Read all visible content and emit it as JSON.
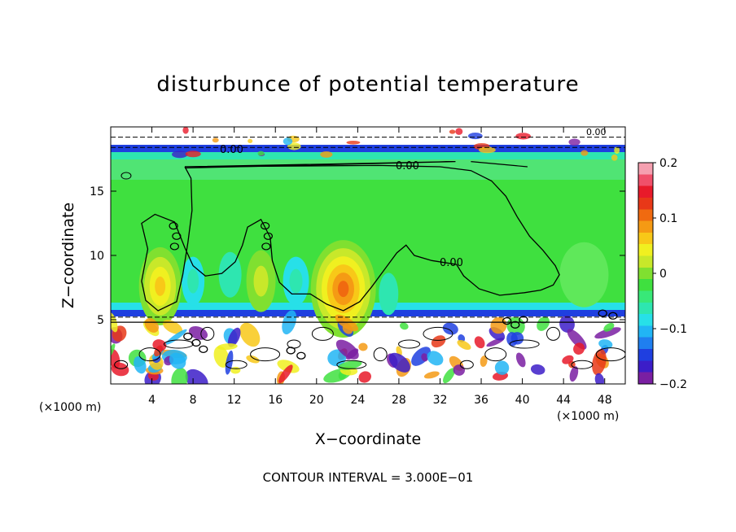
{
  "chart_data": {
    "type": "heatmap",
    "title": "disturbunce of potential temperature",
    "xlabel": "X−coordinate",
    "ylabel": "Z−coordinate",
    "x_unit_left": "(×1000 m)",
    "x_unit_right": "(×1000 m)",
    "xlim": [
      0,
      50
    ],
    "ylim": [
      0,
      20
    ],
    "x_ticks": [
      4,
      8,
      12,
      16,
      20,
      24,
      28,
      32,
      36,
      40,
      44,
      48
    ],
    "y_ticks": [
      5,
      10,
      15
    ],
    "colorbar": {
      "min": -0.2,
      "max": 0.2,
      "tick_values": [
        0.2,
        0.1,
        0,
        -0.1,
        -0.2
      ],
      "tick_labels": [
        "0.2",
        "0.1",
        "0",
        "−0.1",
        "−0.2"
      ],
      "colors": [
        "#7a1fa2",
        "#3c1dc8",
        "#1f3fe0",
        "#1f7ff0",
        "#21b5f5",
        "#27e0e8",
        "#2ee6b0",
        "#38e878",
        "#3fe03f",
        "#80e030",
        "#c8e82a",
        "#f0f020",
        "#f8c818",
        "#f59a14",
        "#f06a10",
        "#e83818",
        "#e81a2a",
        "#f0506a",
        "#f5a0b0"
      ]
    },
    "contour_label": "0.00",
    "contour_interval_text": "CONTOUR INTERVAL = 3.000E−01",
    "grid": false
  },
  "colors": {
    "background": "#ffffff",
    "field_green": "#3fe03f",
    "field_light_green": "#5fe85a"
  }
}
